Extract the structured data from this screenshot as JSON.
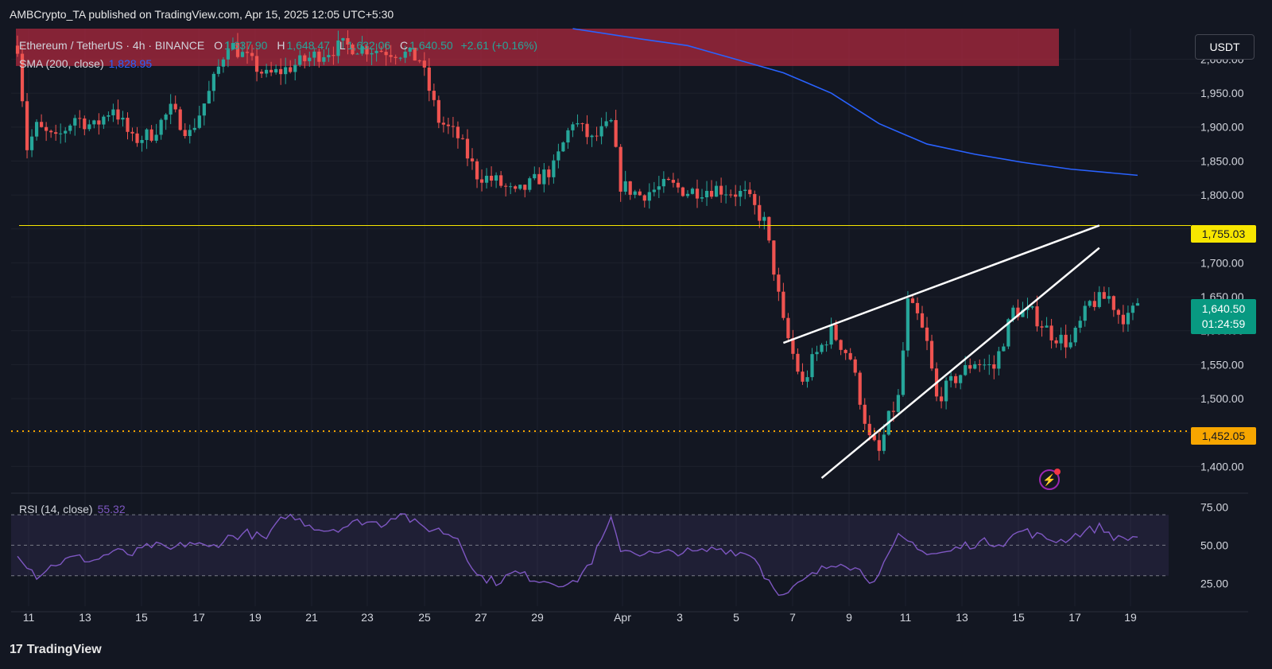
{
  "header": {
    "published": "AMBCrypto_TA published on TradingView.com, Apr 15, 2025 12:05 UTC+5:30"
  },
  "legend": {
    "symbol": "Ethereum / TetherUS · 4h · BINANCE",
    "o_label": "O",
    "o": "1,637.90",
    "h_label": "H",
    "h": "1,648.47",
    "l_label": "L",
    "l": "1,632.06",
    "c_label": "C",
    "c": "1,640.50",
    "change": "+2.61 (+0.16%)",
    "sma_label": "SMA (200, close)",
    "sma_value": "1,828.95"
  },
  "rsi_legend": {
    "label": "RSI (14, close)",
    "value": "55.32"
  },
  "currency_button": "USDT",
  "price_tags": {
    "resistance": "1,755.03",
    "support": "1,452.05",
    "last_price": "1,640.50",
    "countdown": "01:24:59"
  },
  "footer": {
    "brand": "TradingView",
    "logo": "17"
  },
  "colors": {
    "background": "#131722",
    "up": "#26a69a",
    "down": "#ef5350",
    "sma": "#2962ff",
    "rsi": "#7e57c2",
    "resistance": "#f7e600",
    "support": "#f7a600",
    "zone": "#b2283e"
  },
  "chart_data": [
    {
      "type": "candlestick",
      "title": "Ethereum / TetherUS · 4h · BINANCE",
      "y_axis_ticks": [
        "2,000.00",
        "1,950.00",
        "1,900.00",
        "1,850.00",
        "1,800.00",
        "1,750.00",
        "1,700.00",
        "1,650.00",
        "1,600.00",
        "1,550.00",
        "1,500.00",
        "1,450.00",
        "1,400.00"
      ],
      "x_axis_ticks": [
        "11",
        "13",
        "15",
        "17",
        "19",
        "21",
        "23",
        "25",
        "27",
        "29",
        "Apr",
        "3",
        "5",
        "7",
        "9",
        "11",
        "13",
        "15",
        "17",
        "19"
      ],
      "ylim": [
        1370,
        2045
      ],
      "price_path": [
        [
          0,
          2020
        ],
        [
          2,
          1870
        ],
        [
          4,
          1900
        ],
        [
          8,
          1880
        ],
        [
          12,
          1915
        ],
        [
          16,
          1900
        ],
        [
          20,
          1930
        ],
        [
          24,
          1880
        ],
        [
          28,
          1890
        ],
        [
          32,
          1925
        ],
        [
          36,
          1890
        ],
        [
          40,
          1950
        ],
        [
          44,
          2025
        ],
        [
          48,
          2000
        ],
        [
          52,
          1975
        ],
        [
          56,
          1985
        ],
        [
          62,
          2005
        ],
        [
          68,
          2020
        ],
        [
          74,
          2015
        ],
        [
          80,
          2010
        ],
        [
          84,
          2000
        ],
        [
          88,
          1910
        ],
        [
          92,
          1885
        ],
        [
          96,
          1830
        ],
        [
          100,
          1820
        ],
        [
          104,
          1800
        ],
        [
          108,
          1820
        ],
        [
          112,
          1840
        ],
        [
          116,
          1910
        ],
        [
          120,
          1880
        ],
        [
          124,
          1905
        ],
        [
          126,
          1815
        ],
        [
          130,
          1800
        ],
        [
          136,
          1815
        ],
        [
          140,
          1805
        ],
        [
          146,
          1810
        ],
        [
          152,
          1800
        ],
        [
          156,
          1760
        ],
        [
          158,
          1690
        ],
        [
          160,
          1610
        ],
        [
          164,
          1520
        ],
        [
          166,
          1555
        ],
        [
          170,
          1600
        ],
        [
          174,
          1560
        ],
        [
          178,
          1440
        ],
        [
          180,
          1420
        ],
        [
          182,
          1470
        ],
        [
          184,
          1500
        ],
        [
          186,
          1640
        ],
        [
          188,
          1620
        ],
        [
          190,
          1580
        ],
        [
          192,
          1500
        ],
        [
          196,
          1530
        ],
        [
          200,
          1555
        ],
        [
          204,
          1545
        ],
        [
          208,
          1630
        ],
        [
          212,
          1625
        ],
        [
          216,
          1595
        ],
        [
          220,
          1580
        ],
        [
          224,
          1640
        ],
        [
          228,
          1650
        ],
        [
          230,
          1625
        ],
        [
          232,
          1617
        ],
        [
          234,
          1640.5
        ]
      ],
      "sma_200": [
        [
          116,
          2045
        ],
        [
          130,
          2030
        ],
        [
          140,
          2020
        ],
        [
          150,
          2000
        ],
        [
          160,
          1980
        ],
        [
          170,
          1950
        ],
        [
          180,
          1905
        ],
        [
          190,
          1875
        ],
        [
          200,
          1860
        ],
        [
          210,
          1848
        ],
        [
          220,
          1838
        ],
        [
          234,
          1828.95
        ]
      ],
      "resistance_level": 1755.03,
      "support_level": 1452.05,
      "supply_zone": [
        1990,
        2045
      ],
      "rising_wedge": {
        "upper": [
          [
            160,
            1582
          ],
          [
            226,
            1755
          ]
        ],
        "lower": [
          [
            168,
            1383
          ],
          [
            226,
            1722
          ]
        ]
      },
      "last_price": 1640.5
    },
    {
      "type": "line",
      "title": "RSI (14, close)",
      "y_axis_ticks": [
        "75.00",
        "50.00",
        "25.00"
      ],
      "ylim": [
        10,
        80
      ],
      "band": [
        30,
        70
      ],
      "midline": 50,
      "values": [
        [
          0,
          45
        ],
        [
          4,
          30
        ],
        [
          8,
          38
        ],
        [
          12,
          42
        ],
        [
          16,
          40
        ],
        [
          20,
          46
        ],
        [
          24,
          44
        ],
        [
          28,
          50
        ],
        [
          32,
          47
        ],
        [
          36,
          52
        ],
        [
          40,
          48
        ],
        [
          44,
          55
        ],
        [
          48,
          58
        ],
        [
          52,
          54
        ],
        [
          56,
          70
        ],
        [
          60,
          65
        ],
        [
          64,
          60
        ],
        [
          68,
          62
        ],
        [
          72,
          66
        ],
        [
          76,
          64
        ],
        [
          80,
          72
        ],
        [
          84,
          62
        ],
        [
          88,
          60
        ],
        [
          92,
          55
        ],
        [
          96,
          30
        ],
        [
          100,
          26
        ],
        [
          104,
          32
        ],
        [
          108,
          28
        ],
        [
          112,
          26
        ],
        [
          116,
          24
        ],
        [
          120,
          40
        ],
        [
          124,
          66
        ],
        [
          126,
          48
        ],
        [
          130,
          45
        ],
        [
          134,
          44
        ],
        [
          138,
          46
        ],
        [
          142,
          45
        ],
        [
          146,
          48
        ],
        [
          150,
          46
        ],
        [
          154,
          43
        ],
        [
          156,
          30
        ],
        [
          158,
          24
        ],
        [
          160,
          16
        ],
        [
          164,
          26
        ],
        [
          168,
          34
        ],
        [
          172,
          40
        ],
        [
          176,
          33
        ],
        [
          178,
          28
        ],
        [
          180,
          30
        ],
        [
          184,
          55
        ],
        [
          188,
          50
        ],
        [
          190,
          44
        ],
        [
          194,
          45
        ],
        [
          198,
          50
        ],
        [
          202,
          52
        ],
        [
          206,
          52
        ],
        [
          210,
          60
        ],
        [
          214,
          55
        ],
        [
          218,
          53
        ],
        [
          222,
          58
        ],
        [
          226,
          62
        ],
        [
          230,
          54
        ],
        [
          234,
          55.32
        ]
      ]
    }
  ]
}
